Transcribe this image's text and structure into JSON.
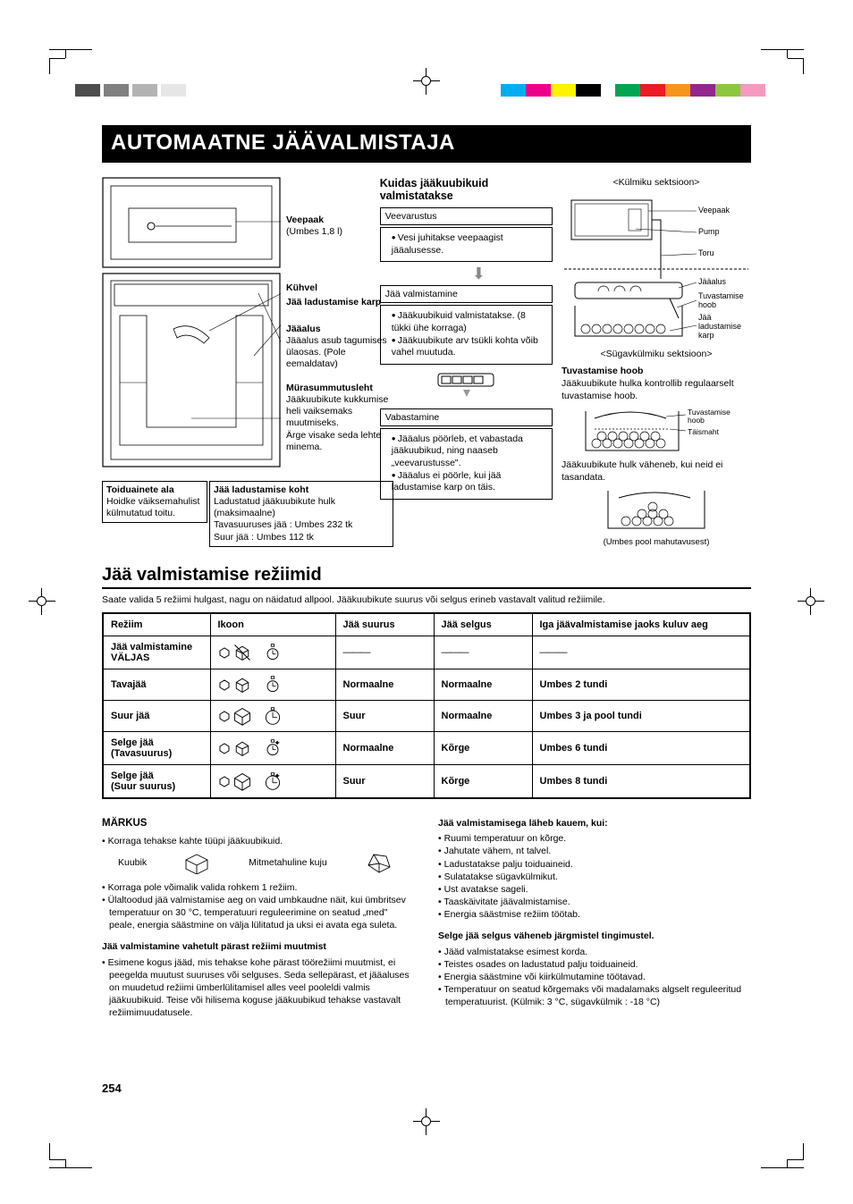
{
  "registration": {
    "left_gray_colors": [
      "#4d4d4d",
      "#808080",
      "#b3b3b3",
      "#e6e6e6"
    ],
    "right_colors": [
      "#00aeef",
      "#ec008c",
      "#fff200",
      "#000000",
      "#00a651",
      "#ed1c24",
      "#f7941d",
      "#92278f",
      "#8dc63f",
      "#f49ac1"
    ]
  },
  "title": "AUTOMAATNE JÄÄVALMISTAJA",
  "left_diagram": {
    "veepaak": "Veepaak",
    "veepaak_note": "(Umbes 1,8 l)",
    "kuhvel": "Kühvel",
    "karp": "Jää ladustamise karp",
    "jaaalus": "Jääalus",
    "jaaalus_note": "Jääalus asub tagumises ülaosas. (Pole eemaldatav)",
    "mura": "Mürasummutusleht",
    "mura_note": "Jääkuubikute kukkumise heli vaiksemaks muutmiseks.\nÄrge visake seda lehte minema.",
    "food_title": "Toiduainete ala",
    "food_note": "Hoidke väiksemahulist külmutatud toitu.",
    "store_title": "Jää ladustamise koht",
    "store_note1": "Ladustatud jääkuubikute hulk (maksimaalne)",
    "store_note2": "Tavasuuruses jää  : Umbes 232 tk",
    "store_note3": "Suur jää               : Umbes 112 tk"
  },
  "mid": {
    "heading": "Kuidas jääkuubikuid valmistatakse",
    "step1_title": "Veevarustus",
    "step1_items": [
      "Vesi juhitakse veepaagist jääalusesse."
    ],
    "step2_title": "Jää valmistamine",
    "step2_items": [
      "Jääkuubikuid valmistatakse. (8 tükki ühe korraga)",
      "Jääkuubikute arv tsükli kohta võib vahel muutuda."
    ],
    "step3_title": "Vabastamine",
    "step3_items": [
      "Jääalus pöörleb, et vabastada jääkuubikud, ning naaseb „veevarustusse\".",
      "Jääalus ei pöörle, kui jää ladustamise karp on täis."
    ]
  },
  "right": {
    "sec_top": "<Külmiku sektsioon>",
    "labels": {
      "veepaak": "Veepaak",
      "pump": "Pump",
      "toru": "Toru",
      "jaaalus": "Jääalus",
      "hoob": "Tuvastamise hoob",
      "karp": "Jää ladustamise karp"
    },
    "sec_bot": "<Sügavkülmiku sektsioon>",
    "hoob_title": "Tuvastamise hoob",
    "hoob_text": "Jääkuubikute hulka kontrollib regulaarselt tuvastamise hoob.",
    "hoob_lbl1": "Tuvastamise hoob",
    "hoob_lbl2": "Täismaht",
    "decrease": "Jääkuubikute hulk väheneb, kui neid ei tasandata.",
    "half": "(Umbes pool mahutavusest)"
  },
  "modes": {
    "title": "Jää valmistamise režiimid",
    "intro": "Saate valida 5 režiimi hulgast, nagu on näidatud allpool. Jääkuubikute suurus või selgus erineb vastavalt valitud režiimile.",
    "headers": [
      "Režiim",
      "Ikoon",
      "Jää suurus",
      "Jää selgus",
      "Iga jäävalmistamise jaoks kuluv aeg"
    ],
    "rows": [
      {
        "mode": "Jää valmistamine VÄLJAS",
        "size": "———",
        "clarity": "———",
        "time": "———",
        "big": false,
        "clear": false,
        "off": true
      },
      {
        "mode": "Tavajää",
        "size": "Normaalne",
        "clarity": "Normaalne",
        "time": "Umbes 2 tundi",
        "big": false,
        "clear": false,
        "off": false
      },
      {
        "mode": "Suur jää",
        "size": "Suur",
        "clarity": "Normaalne",
        "time": "Umbes 3 ja pool tundi",
        "big": true,
        "clear": false,
        "off": false
      },
      {
        "mode": "Selge jää (Tavasuurus)",
        "size": "Normaalne",
        "clarity": "Kõrge",
        "time": "Umbes 6 tundi",
        "big": false,
        "clear": true,
        "off": false
      },
      {
        "mode": "Selge jää (Suur suurus)",
        "size": "Suur",
        "clarity": "Kõrge",
        "time": "Umbes 8 tundi",
        "big": true,
        "clear": true,
        "off": false
      }
    ]
  },
  "notes": {
    "heading": "MÄRKUS",
    "two_types": "Korraga tehakse kahte tüüpi jääkuubikuid.",
    "kuubik": "Kuubik",
    "mitme": "Mitmetahuline kuju",
    "bullets_a": [
      "Korraga pole võimalik valida rohkem 1 režiim.",
      "Ülaltoodud jää valmistamise aeg on vaid umbkaudne näit, kui ümbritsev temperatuur on 30 °C, temperatuuri reguleerimine on seatud „med\" peale, energia säästmine on välja lülitatud ja uksi ei avata ega suleta."
    ],
    "sub_a": "Jää valmistamine vahetult pärast režiimi muutmist",
    "sub_a_text": "Esimene kogus jääd, mis tehakse kohe pärast töörežiimi muutmist, ei peegelda muutust suuruses või selguses. Seda sellepärast, et jääaluses on muudetud režiimi ümberlülitamisel alles veel pooleldi valmis jääkuubikuid. Teise või hilisema koguse jääkuubikud tehakse vastavalt režiimimuudatusele.",
    "sub_b": "Jää valmistamisega läheb kauem, kui:",
    "bullets_b": [
      "Ruumi temperatuur on kõrge.",
      "Jahutate vähem, nt talvel.",
      "Ladustatakse palju toiduaineid.",
      "Sulatatakse sügavkülmikut.",
      "Ust avatakse sageli.",
      "Taaskäivitate jäävalmistamise.",
      "Energia säästmise režiim töötab."
    ],
    "sub_c": "Selge jää selgus väheneb järgmistel tingimustel.",
    "bullets_c": [
      "Jääd valmistatakse esimest korda.",
      "Teistes osades on ladustatud palju toiduaineid.",
      "Energia säästmine või kiirkülmutamine töötavad.",
      "Temperatuur on seatud kõrgemaks või madalamaks algselt reguleeritud temperatuurist. (Külmik: 3 °C, sügavkülmik : -18 °C)"
    ]
  },
  "page_number": "254",
  "colors": {
    "black": "#000000",
    "white": "#ffffff",
    "gray_arrow": "#999999"
  }
}
